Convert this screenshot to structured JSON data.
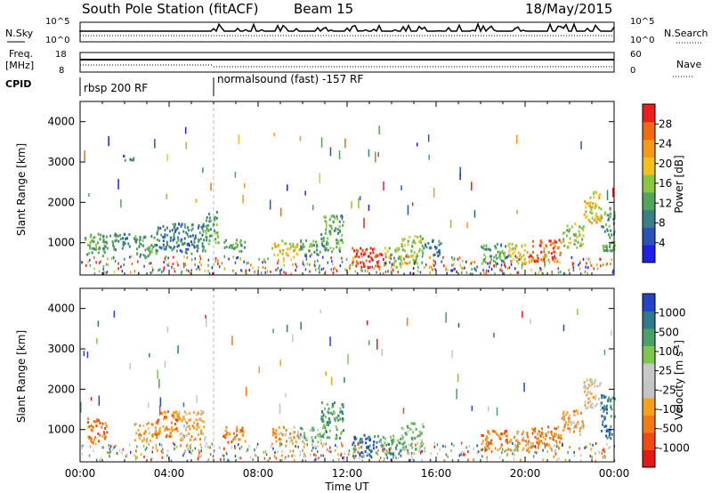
{
  "header": {
    "station": "South Pole Station (fitACF)",
    "beam": "Beam 15",
    "date": "18/May/2015"
  },
  "top_panels": {
    "nsky_label": "N.Sky",
    "nsky_ticks": [
      "10^5",
      "10^0"
    ],
    "nsearch_label": "N.Search",
    "nsearch_ticks": [
      "10^5",
      "10^0"
    ],
    "freq_label": "Freq.",
    "freq_unit": "[MHz]",
    "freq_ticks": [
      "18",
      "8"
    ],
    "nave_label": "Nave",
    "nave_ticks": [
      "60",
      "0"
    ],
    "cpid_label": "CPID",
    "cpid_segments": [
      {
        "start_hour": 0,
        "text": "rbsp 200 RF"
      },
      {
        "start_hour": 6,
        "text": "normalsound (fast) -157 RF"
      }
    ]
  },
  "colors": {
    "power_scale": [
      "#1f1fe6",
      "#2a52b8",
      "#3a7f86",
      "#52a55a",
      "#8cc63f",
      "#f2c21b",
      "#f59a12",
      "#f06a0f",
      "#ee1c1c"
    ],
    "velocity_scale": [
      "#e61717",
      "#f04a12",
      "#f27b14",
      "#f5a21a",
      "#c4c4c4",
      "#c8c8c8",
      "#7ec850",
      "#4aa066",
      "#2f7a8a",
      "#2244c8"
    ]
  },
  "chart_data": [
    {
      "type": "heatmap",
      "name": "power",
      "title": "",
      "xlabel": "Time UT",
      "ylabel": "Slant Range [km]",
      "xlim": [
        0,
        24
      ],
      "ylim": [
        200,
        4500
      ],
      "x_ticks": [
        "00:00",
        "04:00",
        "08:00",
        "12:00",
        "16:00",
        "20:00",
        "00:00"
      ],
      "y_ticks": [
        1000,
        2000,
        3000,
        4000
      ],
      "colorbar": {
        "label": "Power [dB]",
        "ticks": [
          4,
          8,
          12,
          16,
          20,
          24,
          28
        ]
      },
      "regions": [
        {
          "t": [
            0.2,
            1.2
          ],
          "r": [
            700,
            1300
          ],
          "v": 3
        },
        {
          "t": [
            1.2,
            2.2
          ],
          "r": [
            850,
            1250
          ],
          "v": 2
        },
        {
          "t": [
            1.8,
            2.4
          ],
          "r": [
            3050,
            3200
          ],
          "v": 2
        },
        {
          "t": [
            2.4,
            3.4
          ],
          "r": [
            650,
            1200
          ],
          "v": 3
        },
        {
          "t": [
            3.4,
            4.4
          ],
          "r": [
            800,
            1500
          ],
          "v": 2
        },
        {
          "t": [
            4.4,
            5.6
          ],
          "r": [
            750,
            1500
          ],
          "v": 2
        },
        {
          "t": [
            5.6,
            6.2
          ],
          "r": [
            1000,
            1800
          ],
          "v": 3
        },
        {
          "t": [
            6.4,
            7.4
          ],
          "r": [
            800,
            1100
          ],
          "v": 3
        },
        {
          "t": [
            8.6,
            9.8
          ],
          "r": [
            700,
            1100
          ],
          "v": 5
        },
        {
          "t": [
            9.8,
            10.8
          ],
          "r": [
            700,
            1100
          ],
          "v": 3
        },
        {
          "t": [
            10.8,
            11.8
          ],
          "r": [
            800,
            1700
          ],
          "v": 3
        },
        {
          "t": [
            12.2,
            13.6
          ],
          "r": [
            400,
            900
          ],
          "v": 8
        },
        {
          "t": [
            13.6,
            14.4
          ],
          "r": [
            400,
            900
          ],
          "v": 4
        },
        {
          "t": [
            14.4,
            15.4
          ],
          "r": [
            500,
            1200
          ],
          "v": 4
        },
        {
          "t": [
            15.4,
            16.2
          ],
          "r": [
            700,
            1100
          ],
          "v": 2
        },
        {
          "t": [
            18.0,
            19.2
          ],
          "r": [
            500,
            1000
          ],
          "v": 3
        },
        {
          "t": [
            19.2,
            20.2
          ],
          "r": [
            500,
            1000
          ],
          "v": 5
        },
        {
          "t": [
            20.2,
            21.6
          ],
          "r": [
            550,
            1100
          ],
          "v": 7
        },
        {
          "t": [
            21.6,
            22.6
          ],
          "r": [
            900,
            1500
          ],
          "v": 4
        },
        {
          "t": [
            22.6,
            23.4
          ],
          "r": [
            1500,
            2300
          ],
          "v": 5
        },
        {
          "t": [
            23.4,
            24.0
          ],
          "r": [
            800,
            1900
          ],
          "v": 3
        }
      ]
    },
    {
      "type": "heatmap",
      "name": "velocity",
      "title": "",
      "xlabel": "Time UT",
      "ylabel": "Slant Range [km]",
      "xlim": [
        0,
        24
      ],
      "ylim": [
        200,
        4500
      ],
      "x_ticks": [
        "00:00",
        "04:00",
        "08:00",
        "12:00",
        "16:00",
        "20:00",
        "00:00"
      ],
      "y_ticks": [
        1000,
        2000,
        3000,
        4000
      ],
      "colorbar": {
        "label": "Velocity [m s^-1]",
        "ticks": [
          -1000,
          -500,
          -100,
          -25,
          25,
          100,
          500,
          1000
        ]
      },
      "regions": [
        {
          "t": [
            0.3,
            1.2
          ],
          "r": [
            700,
            1300
          ],
          "v": 2
        },
        {
          "t": [
            2.4,
            3.4
          ],
          "r": [
            700,
            1200
          ],
          "v": 3
        },
        {
          "t": [
            3.4,
            4.4
          ],
          "r": [
            800,
            1500
          ],
          "v": 2
        },
        {
          "t": [
            4.4,
            5.6
          ],
          "r": [
            750,
            1500
          ],
          "v": 3
        },
        {
          "t": [
            6.4,
            7.4
          ],
          "r": [
            700,
            1100
          ],
          "v": 2
        },
        {
          "t": [
            8.6,
            9.8
          ],
          "r": [
            700,
            1100
          ],
          "v": 3
        },
        {
          "t": [
            9.8,
            10.8
          ],
          "r": [
            700,
            1100
          ],
          "v": 6
        },
        {
          "t": [
            10.8,
            11.8
          ],
          "r": [
            800,
            1700
          ],
          "v": 7
        },
        {
          "t": [
            12.2,
            13.6
          ],
          "r": [
            350,
            900
          ],
          "v": 8
        },
        {
          "t": [
            13.6,
            14.4
          ],
          "r": [
            400,
            900
          ],
          "v": 7
        },
        {
          "t": [
            14.4,
            15.4
          ],
          "r": [
            500,
            1200
          ],
          "v": 6
        },
        {
          "t": [
            18.0,
            19.2
          ],
          "r": [
            500,
            1000
          ],
          "v": 2
        },
        {
          "t": [
            19.2,
            20.2
          ],
          "r": [
            500,
            1000
          ],
          "v": 3
        },
        {
          "t": [
            20.2,
            21.6
          ],
          "r": [
            550,
            1100
          ],
          "v": 2
        },
        {
          "t": [
            21.6,
            22.6
          ],
          "r": [
            900,
            1500
          ],
          "v": 3
        },
        {
          "t": [
            22.6,
            23.4
          ],
          "r": [
            1500,
            2300
          ],
          "v": 4
        },
        {
          "t": [
            23.4,
            24.0
          ],
          "r": [
            800,
            1900
          ],
          "v": 8
        }
      ]
    }
  ]
}
